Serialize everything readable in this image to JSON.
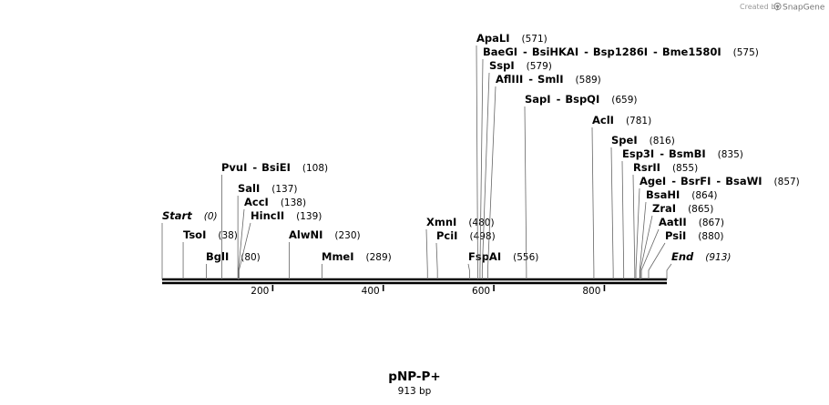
{
  "credit": {
    "prefix": "Created by",
    "brand": "SnapGene"
  },
  "map": {
    "name": "pNP-P+",
    "size_label": "913 bp",
    "length": 913
  },
  "ticks": [
    {
      "value": 200,
      "label": "200"
    },
    {
      "value": 400,
      "label": "400"
    },
    {
      "value": 600,
      "label": "600"
    },
    {
      "value": 800,
      "label": "800"
    }
  ],
  "sites": [
    {
      "id": "start",
      "names": [
        "Start"
      ],
      "pos": 0,
      "pos_label": "(0)",
      "italic": true
    },
    {
      "id": "tsoi",
      "names": [
        "TsoI"
      ],
      "pos": 38,
      "pos_label": "(38)"
    },
    {
      "id": "bgli",
      "names": [
        "BglI"
      ],
      "pos": 80,
      "pos_label": "(80)"
    },
    {
      "id": "pvui",
      "names": [
        "PvuI",
        "BsiEI"
      ],
      "pos": 108,
      "pos_label": "(108)"
    },
    {
      "id": "sali",
      "names": [
        "SalI"
      ],
      "pos": 137,
      "pos_label": "(137)"
    },
    {
      "id": "acci",
      "names": [
        "AccI"
      ],
      "pos": 138,
      "pos_label": "(138)"
    },
    {
      "id": "hincii",
      "names": [
        "HincII"
      ],
      "pos": 139,
      "pos_label": "(139)"
    },
    {
      "id": "alwni",
      "names": [
        "AlwNI"
      ],
      "pos": 230,
      "pos_label": "(230)"
    },
    {
      "id": "mmei",
      "names": [
        "MmeI"
      ],
      "pos": 289,
      "pos_label": "(289)"
    },
    {
      "id": "xmni",
      "names": [
        "XmnI"
      ],
      "pos": 480,
      "pos_label": "(480)"
    },
    {
      "id": "pcii",
      "names": [
        "PciI"
      ],
      "pos": 498,
      "pos_label": "(498)"
    },
    {
      "id": "fspai",
      "names": [
        "FspAI"
      ],
      "pos": 556,
      "pos_label": "(556)"
    },
    {
      "id": "apali",
      "names": [
        "ApaLI"
      ],
      "pos": 571,
      "pos_label": "(571)"
    },
    {
      "id": "baegi",
      "names": [
        "BaeGI",
        "BsiHKAI",
        "Bsp1286I",
        "Bme1580I"
      ],
      "pos": 575,
      "pos_label": "(575)"
    },
    {
      "id": "sspi",
      "names": [
        "SspI"
      ],
      "pos": 579,
      "pos_label": "(579)"
    },
    {
      "id": "aflIII",
      "names": [
        "AflIII",
        "SmlI"
      ],
      "pos": 589,
      "pos_label": "(589)"
    },
    {
      "id": "sapi",
      "names": [
        "SapI",
        "BspQI"
      ],
      "pos": 659,
      "pos_label": "(659)"
    },
    {
      "id": "acli",
      "names": [
        "AclI"
      ],
      "pos": 781,
      "pos_label": "(781)"
    },
    {
      "id": "spei",
      "names": [
        "SpeI"
      ],
      "pos": 816,
      "pos_label": "(816)"
    },
    {
      "id": "esp3i",
      "names": [
        "Esp3I",
        "BsmBI"
      ],
      "pos": 835,
      "pos_label": "(835)"
    },
    {
      "id": "rsrii",
      "names": [
        "RsrII"
      ],
      "pos": 855,
      "pos_label": "(855)"
    },
    {
      "id": "agei",
      "names": [
        "AgeI",
        "BsrFI",
        "BsaWI"
      ],
      "pos": 857,
      "pos_label": "(857)"
    },
    {
      "id": "bsahi",
      "names": [
        "BsaHI"
      ],
      "pos": 864,
      "pos_label": "(864)"
    },
    {
      "id": "zrai",
      "names": [
        "ZraI"
      ],
      "pos": 865,
      "pos_label": "(865)"
    },
    {
      "id": "aatii",
      "names": [
        "AatII"
      ],
      "pos": 867,
      "pos_label": "(867)"
    },
    {
      "id": "psii",
      "names": [
        "PsiI"
      ],
      "pos": 880,
      "pos_label": "(880)"
    },
    {
      "id": "end",
      "names": [
        "End"
      ],
      "pos": 913,
      "pos_label": "(913)",
      "italic": true
    }
  ]
}
